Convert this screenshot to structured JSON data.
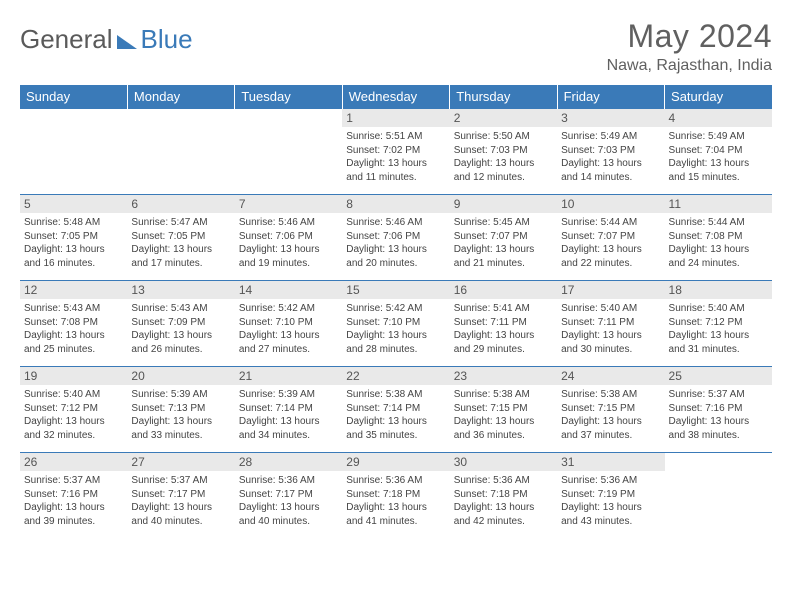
{
  "brand": {
    "word1": "General",
    "word2": "Blue"
  },
  "header": {
    "title": "May 2024",
    "location": "Nawa, Rajasthan, India"
  },
  "colors": {
    "accent": "#3a7ab8",
    "header_bg": "#3a7ab8",
    "header_text": "#ffffff",
    "daynum_bg": "#e9e9e9",
    "text": "#444444",
    "page_bg": "#ffffff"
  },
  "weekdays": [
    "Sunday",
    "Monday",
    "Tuesday",
    "Wednesday",
    "Thursday",
    "Friday",
    "Saturday"
  ],
  "weeks": [
    [
      null,
      null,
      null,
      {
        "d": "1",
        "sr": "Sunrise: 5:51 AM",
        "ss": "Sunset: 7:02 PM",
        "dl1": "Daylight: 13 hours",
        "dl2": "and 11 minutes."
      },
      {
        "d": "2",
        "sr": "Sunrise: 5:50 AM",
        "ss": "Sunset: 7:03 PM",
        "dl1": "Daylight: 13 hours",
        "dl2": "and 12 minutes."
      },
      {
        "d": "3",
        "sr": "Sunrise: 5:49 AM",
        "ss": "Sunset: 7:03 PM",
        "dl1": "Daylight: 13 hours",
        "dl2": "and 14 minutes."
      },
      {
        "d": "4",
        "sr": "Sunrise: 5:49 AM",
        "ss": "Sunset: 7:04 PM",
        "dl1": "Daylight: 13 hours",
        "dl2": "and 15 minutes."
      }
    ],
    [
      {
        "d": "5",
        "sr": "Sunrise: 5:48 AM",
        "ss": "Sunset: 7:05 PM",
        "dl1": "Daylight: 13 hours",
        "dl2": "and 16 minutes."
      },
      {
        "d": "6",
        "sr": "Sunrise: 5:47 AM",
        "ss": "Sunset: 7:05 PM",
        "dl1": "Daylight: 13 hours",
        "dl2": "and 17 minutes."
      },
      {
        "d": "7",
        "sr": "Sunrise: 5:46 AM",
        "ss": "Sunset: 7:06 PM",
        "dl1": "Daylight: 13 hours",
        "dl2": "and 19 minutes."
      },
      {
        "d": "8",
        "sr": "Sunrise: 5:46 AM",
        "ss": "Sunset: 7:06 PM",
        "dl1": "Daylight: 13 hours",
        "dl2": "and 20 minutes."
      },
      {
        "d": "9",
        "sr": "Sunrise: 5:45 AM",
        "ss": "Sunset: 7:07 PM",
        "dl1": "Daylight: 13 hours",
        "dl2": "and 21 minutes."
      },
      {
        "d": "10",
        "sr": "Sunrise: 5:44 AM",
        "ss": "Sunset: 7:07 PM",
        "dl1": "Daylight: 13 hours",
        "dl2": "and 22 minutes."
      },
      {
        "d": "11",
        "sr": "Sunrise: 5:44 AM",
        "ss": "Sunset: 7:08 PM",
        "dl1": "Daylight: 13 hours",
        "dl2": "and 24 minutes."
      }
    ],
    [
      {
        "d": "12",
        "sr": "Sunrise: 5:43 AM",
        "ss": "Sunset: 7:08 PM",
        "dl1": "Daylight: 13 hours",
        "dl2": "and 25 minutes."
      },
      {
        "d": "13",
        "sr": "Sunrise: 5:43 AM",
        "ss": "Sunset: 7:09 PM",
        "dl1": "Daylight: 13 hours",
        "dl2": "and 26 minutes."
      },
      {
        "d": "14",
        "sr": "Sunrise: 5:42 AM",
        "ss": "Sunset: 7:10 PM",
        "dl1": "Daylight: 13 hours",
        "dl2": "and 27 minutes."
      },
      {
        "d": "15",
        "sr": "Sunrise: 5:42 AM",
        "ss": "Sunset: 7:10 PM",
        "dl1": "Daylight: 13 hours",
        "dl2": "and 28 minutes."
      },
      {
        "d": "16",
        "sr": "Sunrise: 5:41 AM",
        "ss": "Sunset: 7:11 PM",
        "dl1": "Daylight: 13 hours",
        "dl2": "and 29 minutes."
      },
      {
        "d": "17",
        "sr": "Sunrise: 5:40 AM",
        "ss": "Sunset: 7:11 PM",
        "dl1": "Daylight: 13 hours",
        "dl2": "and 30 minutes."
      },
      {
        "d": "18",
        "sr": "Sunrise: 5:40 AM",
        "ss": "Sunset: 7:12 PM",
        "dl1": "Daylight: 13 hours",
        "dl2": "and 31 minutes."
      }
    ],
    [
      {
        "d": "19",
        "sr": "Sunrise: 5:40 AM",
        "ss": "Sunset: 7:12 PM",
        "dl1": "Daylight: 13 hours",
        "dl2": "and 32 minutes."
      },
      {
        "d": "20",
        "sr": "Sunrise: 5:39 AM",
        "ss": "Sunset: 7:13 PM",
        "dl1": "Daylight: 13 hours",
        "dl2": "and 33 minutes."
      },
      {
        "d": "21",
        "sr": "Sunrise: 5:39 AM",
        "ss": "Sunset: 7:14 PM",
        "dl1": "Daylight: 13 hours",
        "dl2": "and 34 minutes."
      },
      {
        "d": "22",
        "sr": "Sunrise: 5:38 AM",
        "ss": "Sunset: 7:14 PM",
        "dl1": "Daylight: 13 hours",
        "dl2": "and 35 minutes."
      },
      {
        "d": "23",
        "sr": "Sunrise: 5:38 AM",
        "ss": "Sunset: 7:15 PM",
        "dl1": "Daylight: 13 hours",
        "dl2": "and 36 minutes."
      },
      {
        "d": "24",
        "sr": "Sunrise: 5:38 AM",
        "ss": "Sunset: 7:15 PM",
        "dl1": "Daylight: 13 hours",
        "dl2": "and 37 minutes."
      },
      {
        "d": "25",
        "sr": "Sunrise: 5:37 AM",
        "ss": "Sunset: 7:16 PM",
        "dl1": "Daylight: 13 hours",
        "dl2": "and 38 minutes."
      }
    ],
    [
      {
        "d": "26",
        "sr": "Sunrise: 5:37 AM",
        "ss": "Sunset: 7:16 PM",
        "dl1": "Daylight: 13 hours",
        "dl2": "and 39 minutes."
      },
      {
        "d": "27",
        "sr": "Sunrise: 5:37 AM",
        "ss": "Sunset: 7:17 PM",
        "dl1": "Daylight: 13 hours",
        "dl2": "and 40 minutes."
      },
      {
        "d": "28",
        "sr": "Sunrise: 5:36 AM",
        "ss": "Sunset: 7:17 PM",
        "dl1": "Daylight: 13 hours",
        "dl2": "and 40 minutes."
      },
      {
        "d": "29",
        "sr": "Sunrise: 5:36 AM",
        "ss": "Sunset: 7:18 PM",
        "dl1": "Daylight: 13 hours",
        "dl2": "and 41 minutes."
      },
      {
        "d": "30",
        "sr": "Sunrise: 5:36 AM",
        "ss": "Sunset: 7:18 PM",
        "dl1": "Daylight: 13 hours",
        "dl2": "and 42 minutes."
      },
      {
        "d": "31",
        "sr": "Sunrise: 5:36 AM",
        "ss": "Sunset: 7:19 PM",
        "dl1": "Daylight: 13 hours",
        "dl2": "and 43 minutes."
      },
      null
    ]
  ]
}
